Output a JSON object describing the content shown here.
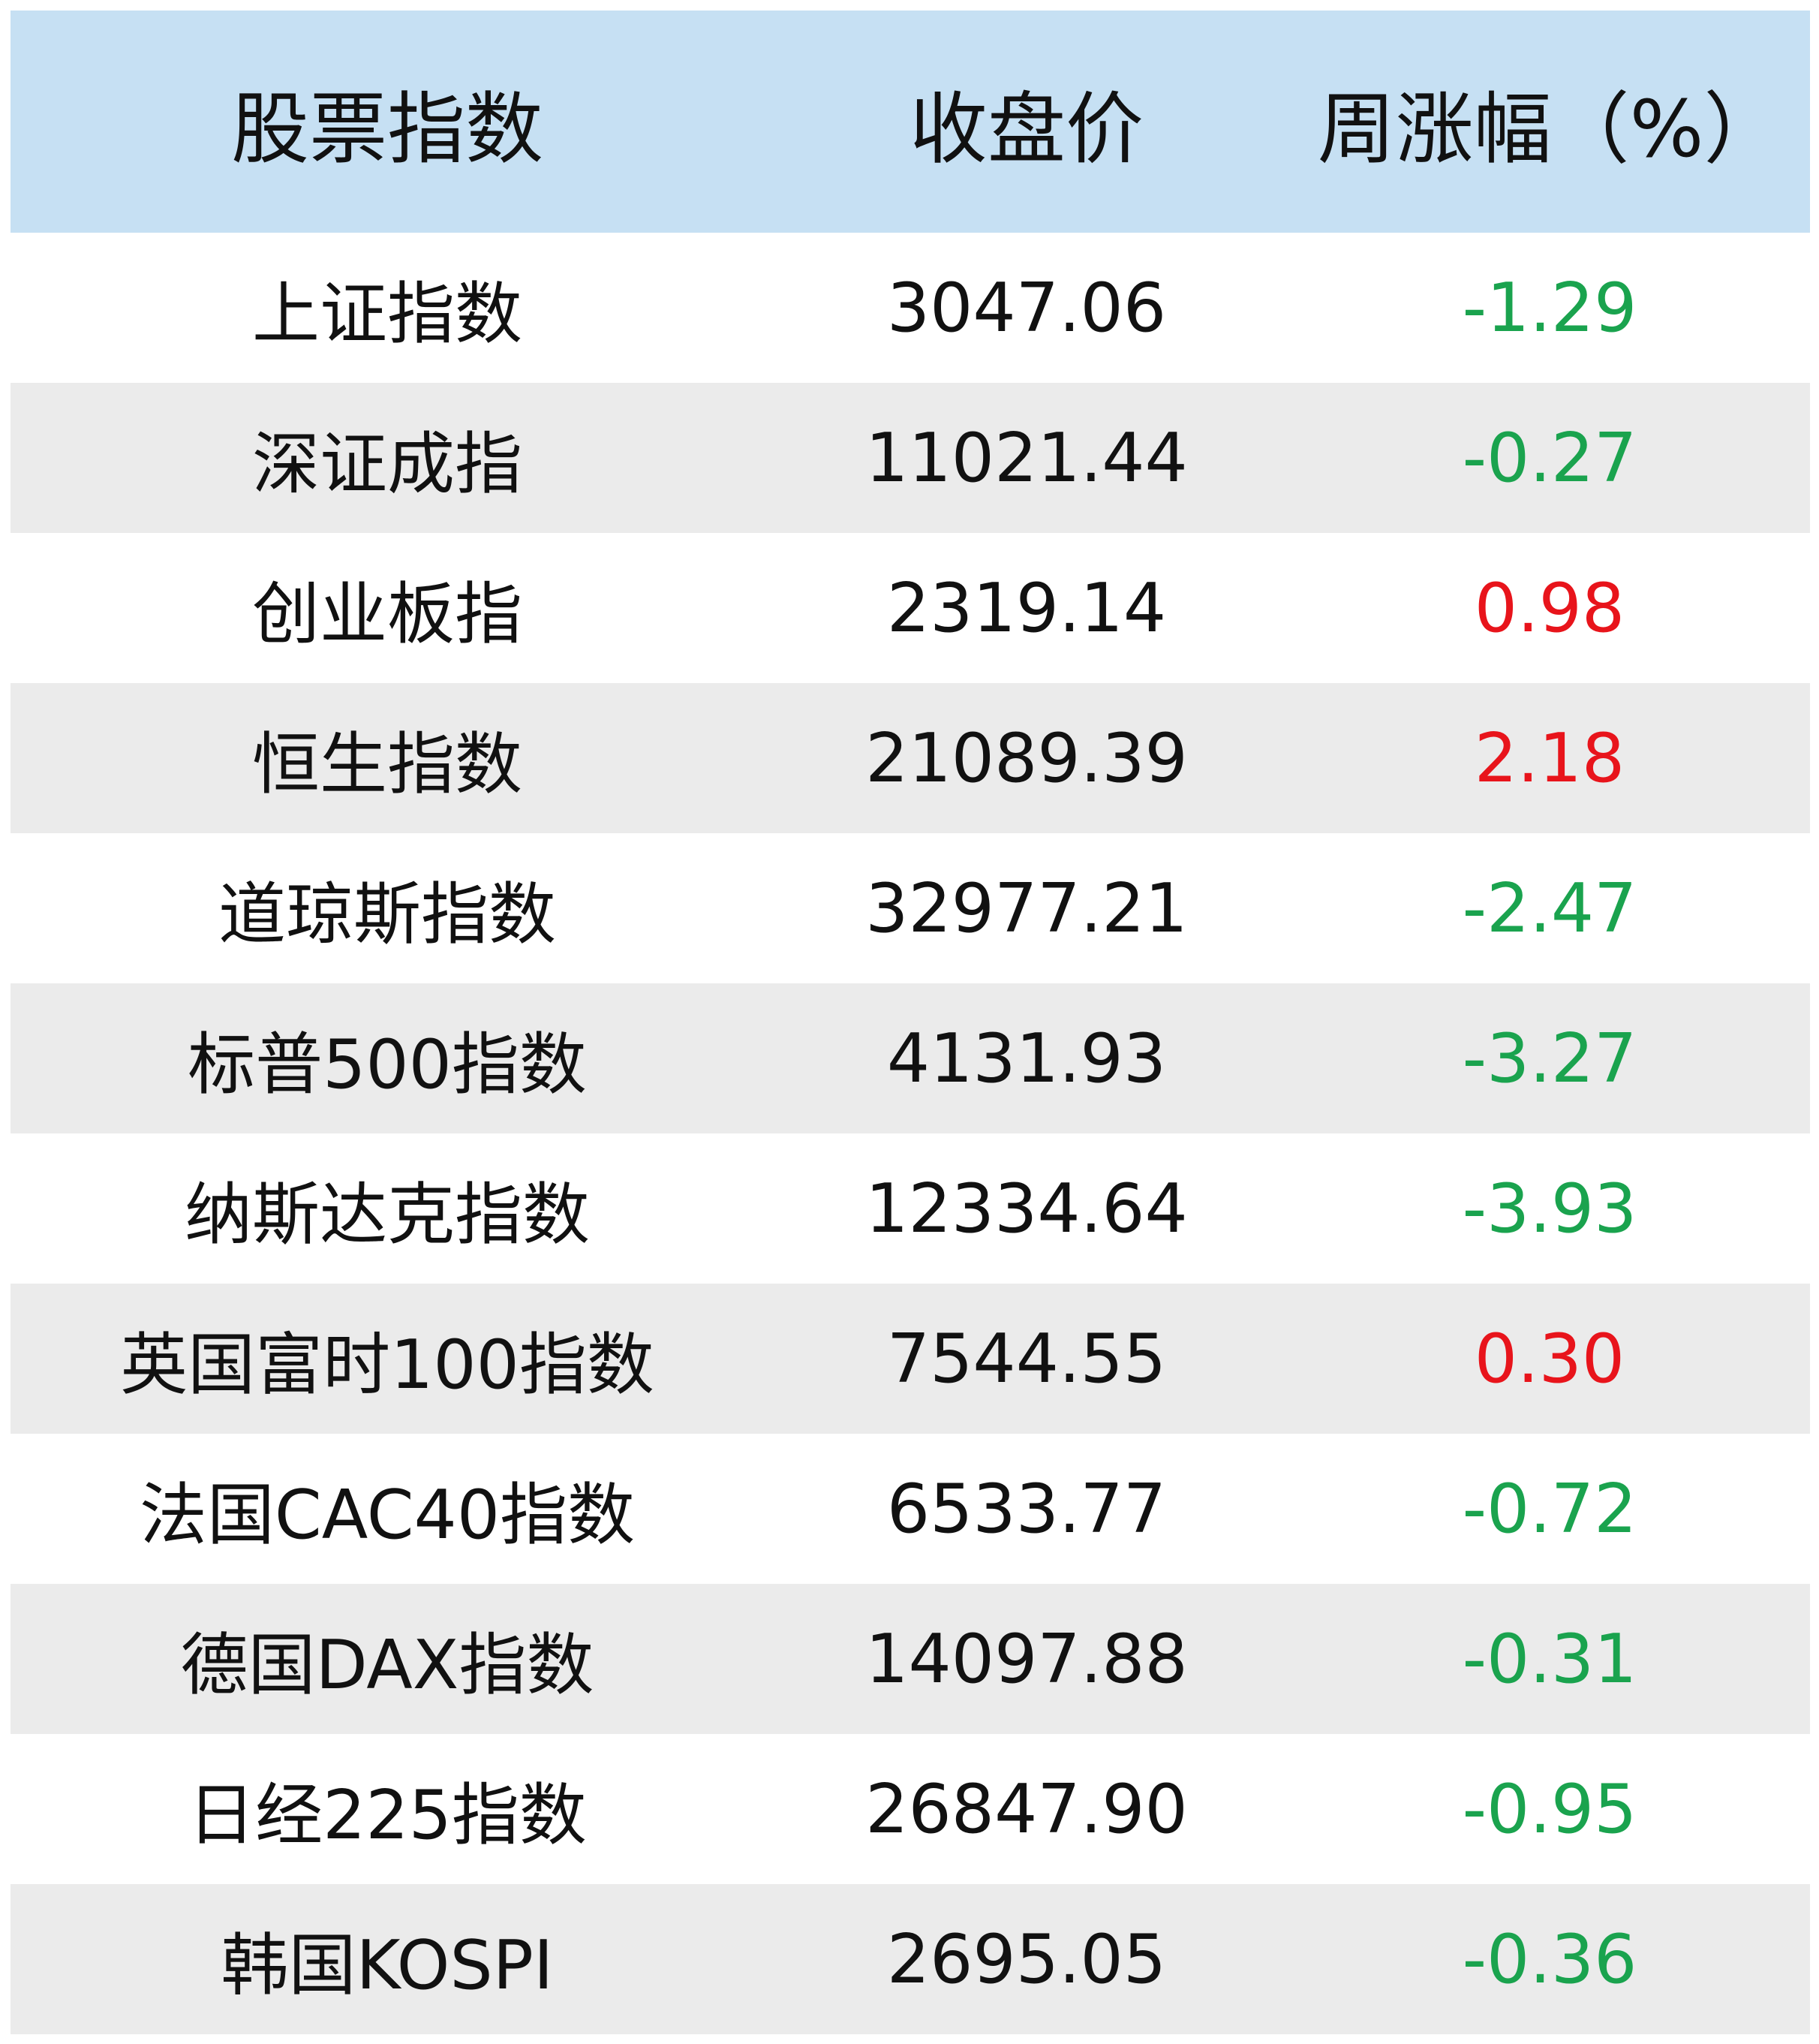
{
  "table": {
    "header": [
      "股票指数",
      "收盘价",
      "周涨幅（%）"
    ],
    "rows": [
      [
        "上证指数",
        "3047.06",
        "-1.29"
      ],
      [
        "深证成指",
        "11021.44",
        "-0.27"
      ],
      [
        "创业板指",
        "2319.14",
        "0.98"
      ],
      [
        "恒生指数",
        "21089.39",
        "2.18"
      ],
      [
        "道琼斯指数",
        "32977.21",
        "-2.47"
      ],
      [
        "标普500指数",
        "4131.93",
        "-3.27"
      ],
      [
        "纳斯达克指数",
        "12334.64",
        "-3.93"
      ],
      [
        "英国富时100指数",
        "7544.55",
        "0.30"
      ],
      [
        "法国CAC40指数",
        "6533.77",
        "-0.72"
      ],
      [
        "德国DAX指数",
        "14097.88",
        "-0.31"
      ],
      [
        "日经225指数",
        "26847.90",
        "-0.95"
      ],
      [
        "韩国KOSPI",
        "2695.05",
        "-0.36"
      ]
    ],
    "colors": {
      "up": "#e8141b",
      "down": "#1aa34e"
    }
  }
}
